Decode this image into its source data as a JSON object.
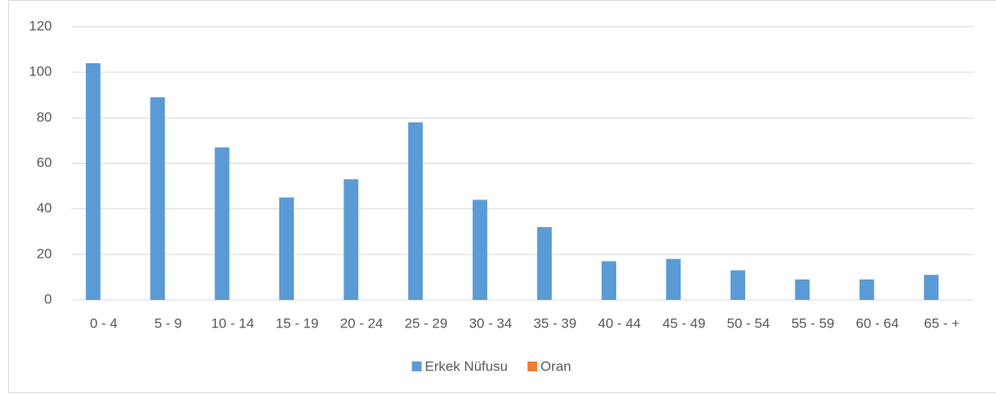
{
  "chart_data": {
    "type": "bar",
    "categories": [
      "0 - 4",
      "5 - 9",
      "10 - 14",
      "15 - 19",
      "20 - 24",
      "25 - 29",
      "30 - 34",
      "35 - 39",
      "40 - 44",
      "45 - 49",
      "50 - 54",
      "55 - 59",
      "60 - 64",
      "65 - +"
    ],
    "series": [
      {
        "name": "Erkek Nüfusu",
        "color": "#5b9bd5",
        "values": [
          104,
          89,
          67,
          45,
          53,
          78,
          44,
          32,
          17,
          18,
          13,
          9,
          9,
          11
        ]
      },
      {
        "name": "Oran",
        "color": "#ed7d31",
        "values": [
          0,
          0,
          0,
          0,
          0,
          0,
          0,
          0,
          0,
          0,
          0,
          0,
          0,
          0
        ]
      }
    ],
    "ylim": [
      0,
      120
    ],
    "yticks": [
      0,
      20,
      40,
      60,
      80,
      100,
      120
    ],
    "grid": true,
    "legend": "bottom"
  }
}
